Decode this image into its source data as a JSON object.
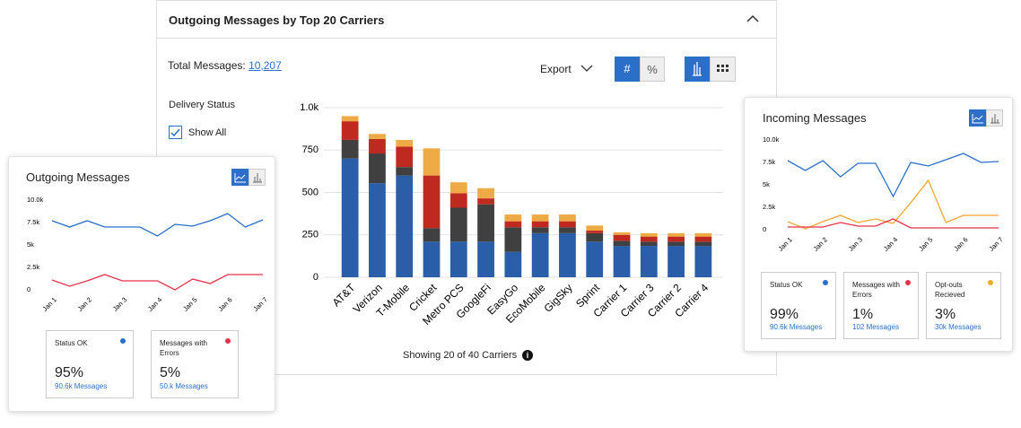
{
  "panel": {
    "total_label": "Total Messages:",
    "total_value": "10,207",
    "export": "Export",
    "toggle": [
      "#",
      "%"
    ],
    "filter_title": "Delivery Status",
    "filter_option": "Show All",
    "footer": "Showing 20 of 40 Carriers"
  },
  "chart_data": [
    {
      "type": "bar",
      "stacked": true,
      "title": "Outgoing Messages by Top 20 Carriers",
      "categories": [
        "AT&T",
        "Verizon",
        "T-Mobile",
        "Cricket",
        "Metro PCS",
        "GoogleFi",
        "EasyGo",
        "EcoMobile",
        "GigSky",
        "Sprint",
        "Carrier 1",
        "Carrier 3",
        "Carrier 2",
        "Carrier 4"
      ],
      "series": [
        {
          "color": "#2a5ea8",
          "values": [
            700,
            555,
            600,
            210,
            210,
            210,
            150,
            260,
            260,
            210,
            185,
            185,
            185,
            185
          ]
        },
        {
          "color": "#404040",
          "values": [
            110,
            175,
            50,
            80,
            200,
            220,
            145,
            35,
            35,
            50,
            30,
            25,
            25,
            25
          ]
        },
        {
          "color": "#c0291f",
          "values": [
            110,
            85,
            120,
            310,
            85,
            35,
            35,
            35,
            35,
            15,
            35,
            30,
            30,
            30
          ]
        },
        {
          "color": "#eeaa44",
          "values": [
            30,
            30,
            40,
            160,
            65,
            60,
            40,
            40,
            40,
            30,
            15,
            20,
            20,
            20
          ]
        }
      ],
      "ylim": [
        0,
        1000
      ],
      "yticks": [
        0,
        250,
        500,
        750,
        {
          "value": 1000,
          "label": "1.0k"
        }
      ],
      "grid": true
    },
    {
      "type": "line",
      "title": "Outgoing Messages",
      "categories": [
        "Jan 1",
        null,
        "Jan 2",
        null,
        "Jan 3",
        null,
        "Jan 4",
        null,
        "Jan 5",
        null,
        "Jan 6",
        null,
        "Jan 7"
      ],
      "series": [
        {
          "color": "#2b6fc9",
          "values": [
            7700,
            7000,
            7700,
            7000,
            7000,
            7000,
            6000,
            7300,
            7100,
            7700,
            8500,
            7000,
            7800
          ]
        },
        {
          "color": "#e8324a",
          "values": [
            1100,
            400,
            1000,
            1700,
            1000,
            1000,
            1000,
            0,
            1200,
            700,
            1700,
            1700,
            1700
          ]
        }
      ],
      "ylim": [
        0,
        10000
      ],
      "yticks": [
        0,
        {
          "value": 2500,
          "label": "2.5k"
        },
        {
          "value": 5000,
          "label": "5k"
        },
        {
          "value": 7500,
          "label": "7.5k"
        },
        {
          "value": 10000,
          "label": "10.0k"
        }
      ],
      "grid": false,
      "cards": [
        {
          "label": "Status OK",
          "percent": "95%",
          "detail": "90.6k Messages",
          "color": "#2b6fc9"
        },
        {
          "label": "Messages with Errors",
          "percent": "5%",
          "detail": "50.k Messages",
          "color": "#e8324a"
        }
      ]
    },
    {
      "type": "line",
      "title": "Incoming Messages",
      "categories": [
        "Jan 1",
        null,
        "Jan 2",
        null,
        "Jan 3",
        null,
        "Jan 4",
        null,
        "Jan 5",
        null,
        "Jan 6",
        null,
        "Jan 7"
      ],
      "series": [
        {
          "color": "#2b6fc9",
          "values": [
            7700,
            6600,
            7700,
            5900,
            7400,
            7400,
            3700,
            7500,
            7100,
            7800,
            8500,
            7500,
            7600
          ]
        },
        {
          "color": "#f0a830",
          "values": [
            900,
            100,
            900,
            1600,
            800,
            1200,
            700,
            3000,
            5500,
            800,
            1600,
            1600,
            1600
          ]
        },
        {
          "color": "#e8324a",
          "values": [
            300,
            300,
            300,
            800,
            400,
            400,
            1200,
            200,
            200,
            200,
            200,
            200,
            200
          ]
        }
      ],
      "ylim": [
        0,
        10000
      ],
      "yticks": [
        0,
        {
          "value": 2500,
          "label": "2.5k"
        },
        {
          "value": 5000,
          "label": "5k"
        },
        {
          "value": 7500,
          "label": "7.5k"
        },
        {
          "value": 10000,
          "label": "10.0k"
        }
      ],
      "grid": false,
      "cards": [
        {
          "label": "Status OK",
          "percent": "99%",
          "detail": "90.6k Messages",
          "color": "#2b6fc9"
        },
        {
          "label": "Messages with Errors",
          "percent": "1%",
          "detail": "102 Messages",
          "color": "#e8324a"
        },
        {
          "label": "Opt-outs Recieved",
          "percent": "3%",
          "detail": "30k Messages",
          "color": "#f0a830"
        }
      ]
    }
  ]
}
